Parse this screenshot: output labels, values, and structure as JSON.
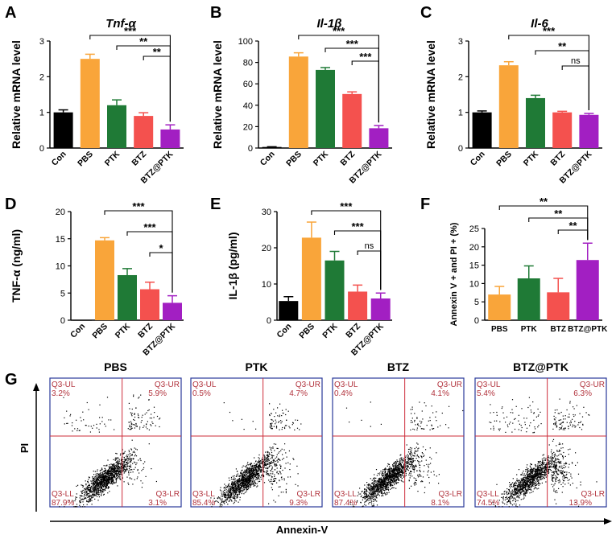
{
  "figure": {
    "colors": {
      "con": "#000000",
      "pbs": "#f9a53a",
      "ptk": "#1f7a36",
      "btz": "#f4514e",
      "btzptk": "#a21fc2",
      "quadrant": "#cc2c3a",
      "frame": "#2a3a9a",
      "label": "#b2333d"
    }
  },
  "chart_data": [
    {
      "panel": "A",
      "type": "bar",
      "title": "Tnf-α",
      "ylabel": "Relative mRNA level",
      "categories": [
        "Con",
        "PBS",
        "PTK",
        "BTZ",
        "BTZ@PTK"
      ],
      "values": [
        1.0,
        2.5,
        1.2,
        0.9,
        0.52
      ],
      "errors": [
        0.07,
        0.13,
        0.15,
        0.09,
        0.13
      ],
      "ylim": [
        0,
        3
      ],
      "yticks": [
        "0",
        "1",
        "2",
        "3"
      ],
      "significance": [
        {
          "from": "PBS",
          "to": "BTZ@PTK",
          "label": "***",
          "level": 3
        },
        {
          "from": "PTK",
          "to": "BTZ@PTK",
          "label": "**",
          "level": 2
        },
        {
          "from": "BTZ",
          "to": "BTZ@PTK",
          "label": "**",
          "level": 1
        }
      ]
    },
    {
      "panel": "B",
      "type": "bar",
      "title": "Il-1β",
      "ylabel": "Relative mRNA level",
      "categories": [
        "Con",
        "PBS",
        "PTK",
        "BTZ",
        "BTZ@PTK"
      ],
      "values": [
        1,
        85.5,
        73,
        50.5,
        18.5
      ],
      "errors": [
        0.2,
        3.5,
        2.2,
        2.0,
        2.5
      ],
      "ylim": [
        0,
        100
      ],
      "yticks": [
        "0",
        "20",
        "40",
        "60",
        "80",
        "100"
      ],
      "significance": [
        {
          "from": "PBS",
          "to": "BTZ@PTK",
          "label": "***",
          "level": 3
        },
        {
          "from": "PTK",
          "to": "BTZ@PTK",
          "label": "***",
          "level": 2
        },
        {
          "from": "BTZ",
          "to": "BTZ@PTK",
          "label": "***",
          "level": 1
        }
      ]
    },
    {
      "panel": "C",
      "type": "bar",
      "title": "Il-6",
      "ylabel": "Relative mRNA level",
      "categories": [
        "Con",
        "PBS",
        "PTK",
        "BTZ",
        "BTZ@PTK"
      ],
      "values": [
        1.0,
        2.32,
        1.4,
        1.0,
        0.93
      ],
      "errors": [
        0.04,
        0.1,
        0.08,
        0.03,
        0.04
      ],
      "ylim": [
        0,
        3
      ],
      "yticks": [
        "0",
        "1",
        "2",
        "3"
      ],
      "significance": [
        {
          "from": "PBS",
          "to": "BTZ@PTK",
          "label": "***",
          "level": 3
        },
        {
          "from": "PTK",
          "to": "BTZ@PTK",
          "label": "**",
          "level": 2
        },
        {
          "from": "BTZ",
          "to": "BTZ@PTK",
          "label": "ns",
          "level": 1
        }
      ]
    },
    {
      "panel": "D",
      "type": "bar",
      "title": "",
      "ylabel": "TNF-α (ng/ml)",
      "categories": [
        "Con",
        "PBS",
        "PTK",
        "BTZ",
        "BTZ@PTK"
      ],
      "values": [
        0,
        14.7,
        8.3,
        5.7,
        3.2
      ],
      "errors": [
        0,
        0.5,
        1.2,
        1.3,
        1.3
      ],
      "ylim": [
        0,
        20
      ],
      "yticks": [
        "0",
        "5",
        "10",
        "15",
        "20"
      ],
      "significance": [
        {
          "from": "PBS",
          "to": "BTZ@PTK",
          "label": "***",
          "level": 3
        },
        {
          "from": "PTK",
          "to": "BTZ@PTK",
          "label": "***",
          "level": 2
        },
        {
          "from": "BTZ",
          "to": "BTZ@PTK",
          "label": "*",
          "level": 1
        }
      ]
    },
    {
      "panel": "E",
      "type": "bar",
      "title": "",
      "ylabel": "IL-1β (pg/ml)",
      "categories": [
        "Con",
        "PBS",
        "PTK",
        "BTZ",
        "BTZ@PTK"
      ],
      "values": [
        5.3,
        22.8,
        16.5,
        7.9,
        6.0
      ],
      "errors": [
        1.2,
        4.3,
        2.5,
        1.8,
        1.5
      ],
      "ylim": [
        0,
        30
      ],
      "yticks": [
        "0",
        "10",
        "20",
        "30"
      ],
      "significance": [
        {
          "from": "PBS",
          "to": "BTZ@PTK",
          "label": "***",
          "level": 3
        },
        {
          "from": "PTK",
          "to": "BTZ@PTK",
          "label": "***",
          "level": 2
        },
        {
          "from": "BTZ",
          "to": "BTZ@PTK",
          "label": "ns",
          "level": 1
        }
      ]
    },
    {
      "panel": "F",
      "type": "bar",
      "title": "",
      "ylabel": "Annexin V + and PI + (%)",
      "categories": [
        "PBS",
        "PTK",
        "BTZ",
        "BTZ@PTK"
      ],
      "values": [
        7.0,
        11.4,
        7.6,
        16.4
      ],
      "errors": [
        2.2,
        3.4,
        3.8,
        4.6
      ],
      "ylim": [
        0,
        25
      ],
      "yticks": [
        "0",
        "5",
        "10",
        "15",
        "20",
        "25"
      ],
      "significance": [
        {
          "from": "PBS",
          "to": "BTZ@PTK",
          "label": "**",
          "level": 3
        },
        {
          "from": "PTK",
          "to": "BTZ@PTK",
          "label": "**",
          "level": 2
        },
        {
          "from": "BTZ",
          "to": "BTZ@PTK",
          "label": "**",
          "level": 1
        }
      ]
    },
    {
      "panel": "G",
      "type": "scatter",
      "xlabel": "Annexin-V",
      "ylabel": "PI",
      "plots": [
        {
          "title": "PBS",
          "ul": "Q3-UL",
          "ul_val": "3.2%",
          "ur": "Q3-UR",
          "ur_val": "5.9%",
          "ll": "Q3-LL",
          "ll_val": "87.9%",
          "lr": "Q3-LR",
          "lr_val": "3.1%"
        },
        {
          "title": "PTK",
          "ul": "Q3-UL",
          "ul_val": "0.5%",
          "ur": "Q3-UR",
          "ur_val": "4.7%",
          "ll": "Q3-LL",
          "ll_val": "85.4%",
          "lr": "Q3-LR",
          "lr_val": "9.3%"
        },
        {
          "title": "BTZ",
          "ul": "Q3-UL",
          "ul_val": "0.4%",
          "ur": "Q3-UR",
          "ur_val": "4.1%",
          "ll": "Q3-LL",
          "ll_val": "87.4%",
          "lr": "Q3-LR",
          "lr_val": "8.1%"
        },
        {
          "title": "BTZ@PTK",
          "ul": "Q3-UL",
          "ul_val": "5.4%",
          "ur": "Q3-UR",
          "ur_val": "6.3%",
          "ll": "Q3-LL",
          "ll_val": "74.5%",
          "lr": "Q3-LR",
          "lr_val": "13.9%"
        }
      ]
    }
  ]
}
